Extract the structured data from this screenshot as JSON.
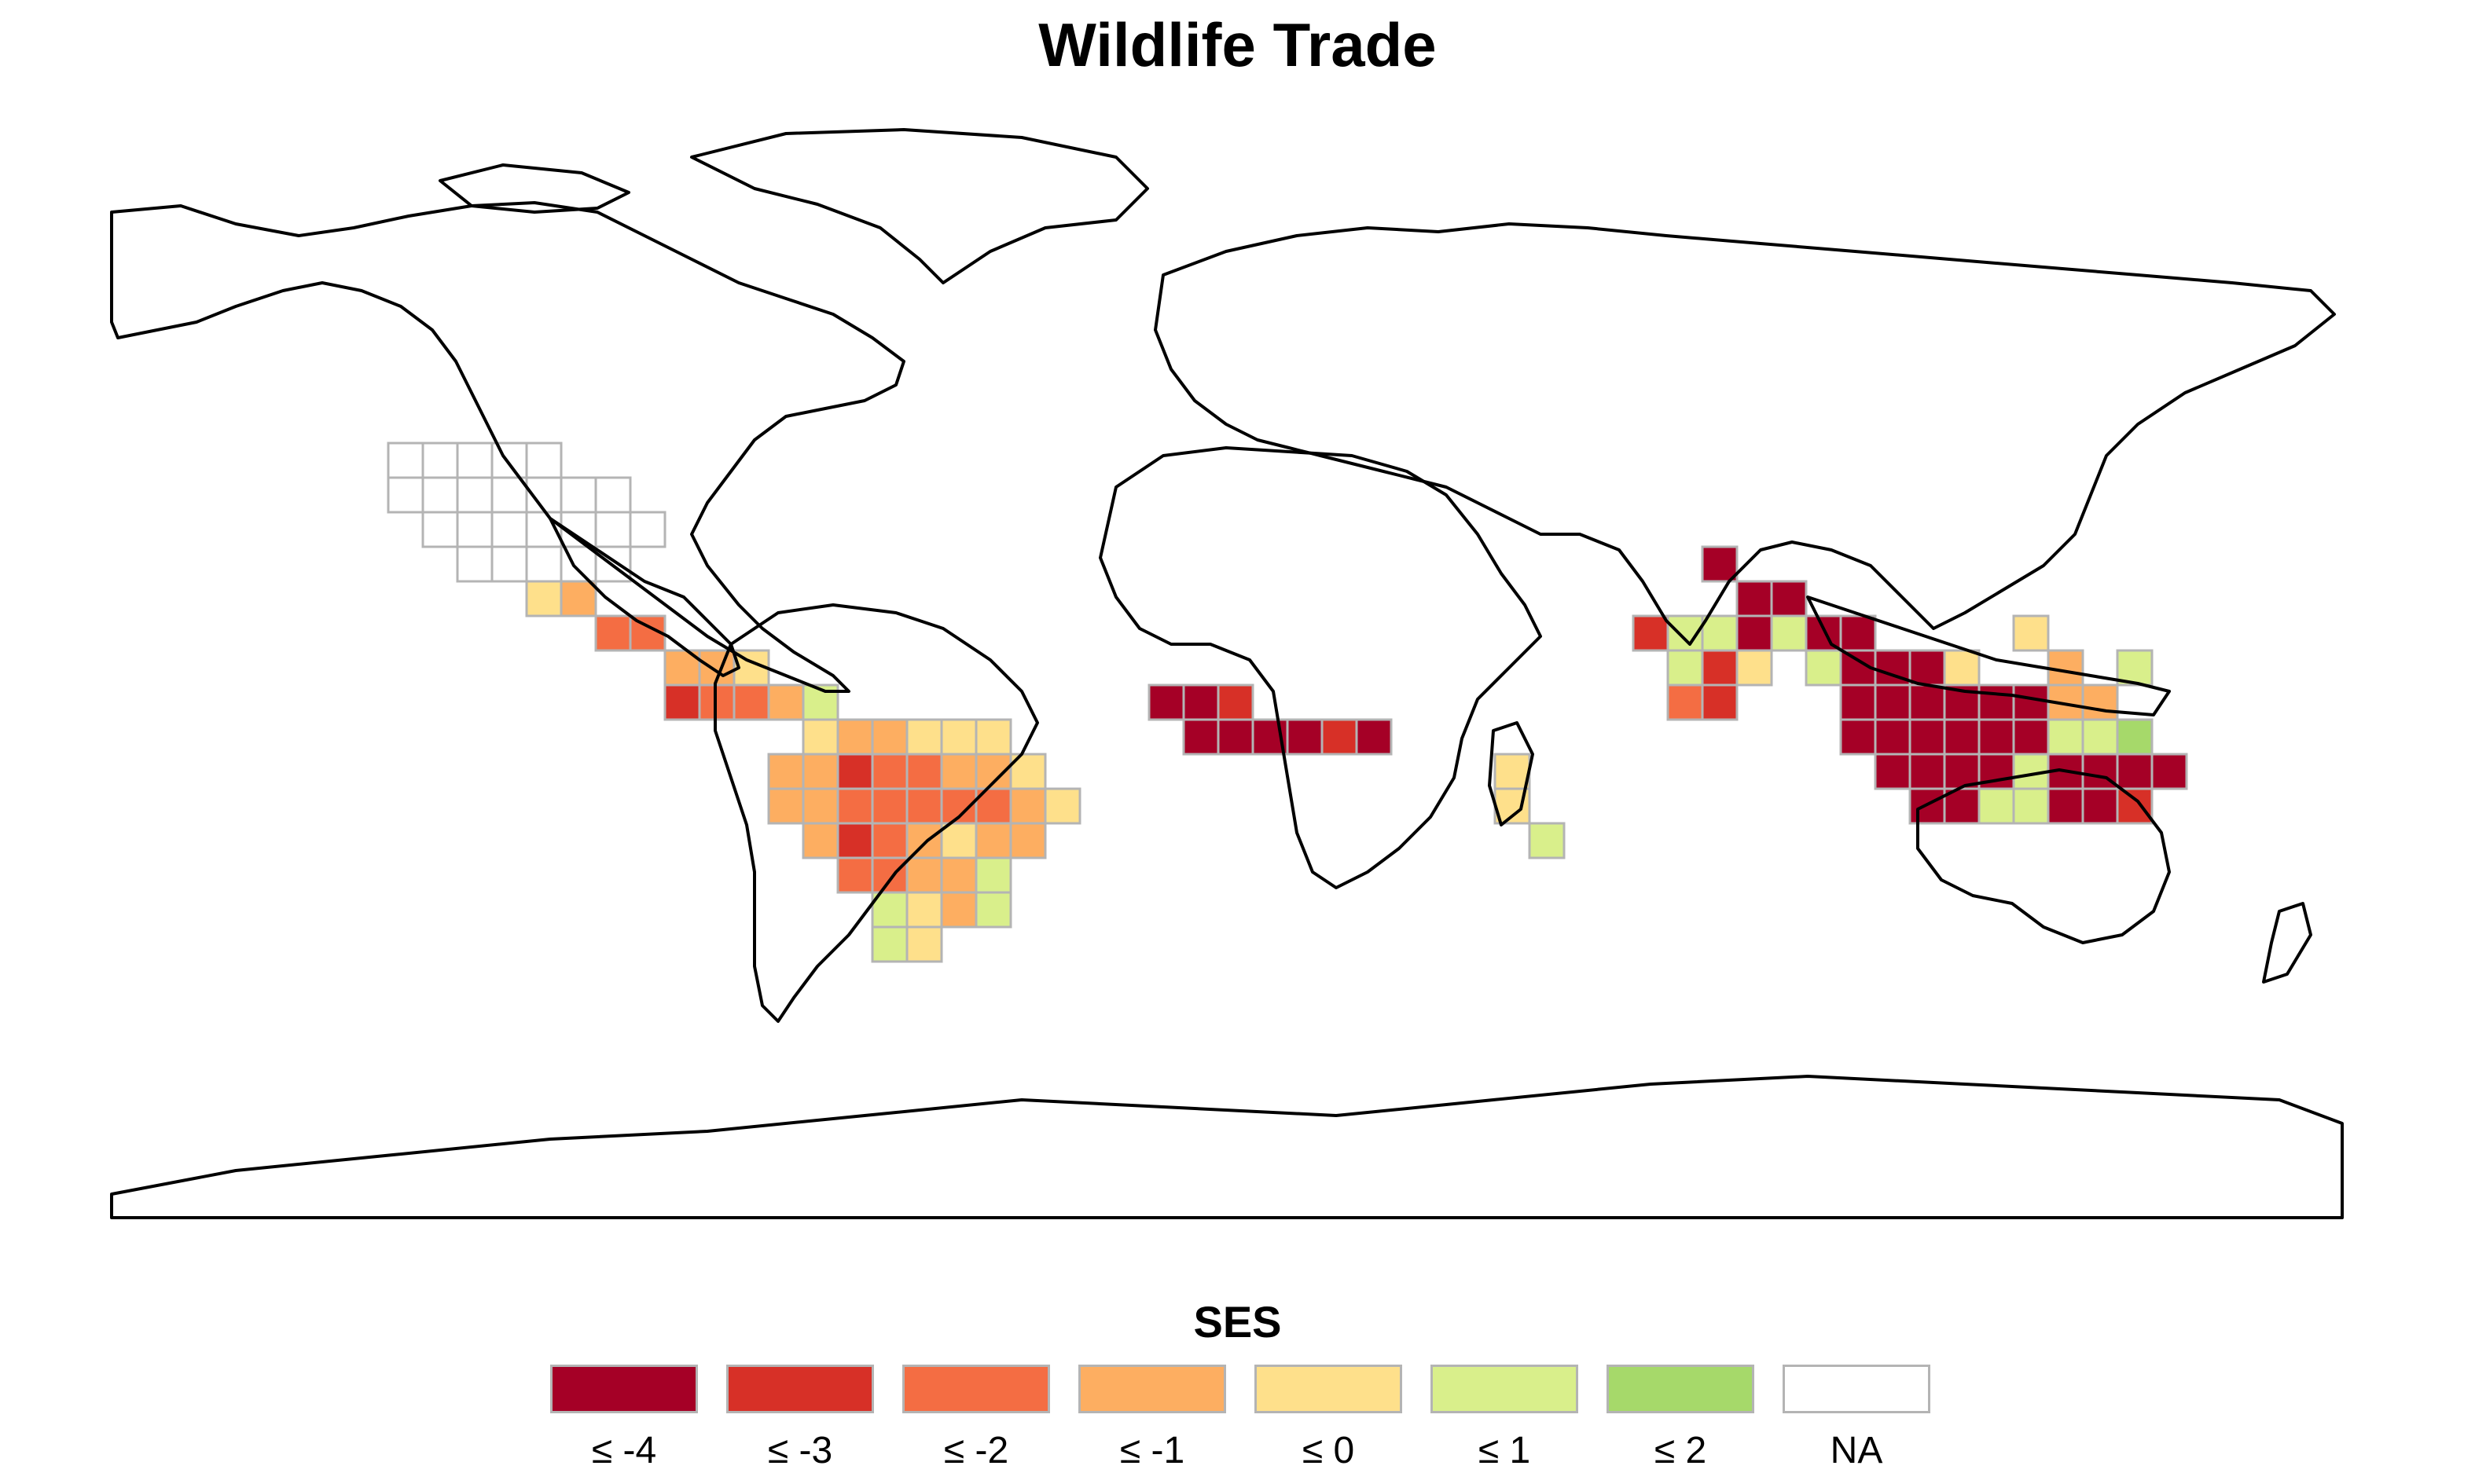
{
  "title": "Wildlife Trade",
  "legend": {
    "title": "SES",
    "items": [
      {
        "label": "≤ -4",
        "color": "#a50026"
      },
      {
        "label": "≤ -3",
        "color": "#d73027"
      },
      {
        "label": "≤ -2",
        "color": "#f46d43"
      },
      {
        "label": "≤ -1",
        "color": "#fdae61"
      },
      {
        "label": "≤ 0",
        "color": "#fee08b"
      },
      {
        "label": "≤ 1",
        "color": "#d9ef8b"
      },
      {
        "label": "≤ 2",
        "color": "#a6d96a"
      },
      {
        "label": "NA",
        "color": "#ffffff"
      }
    ]
  },
  "map": {
    "projection": "equirectangular",
    "background": "#ffffff",
    "coastline_color": "#000000",
    "grid_line_color": "#b4b4b4"
  }
}
